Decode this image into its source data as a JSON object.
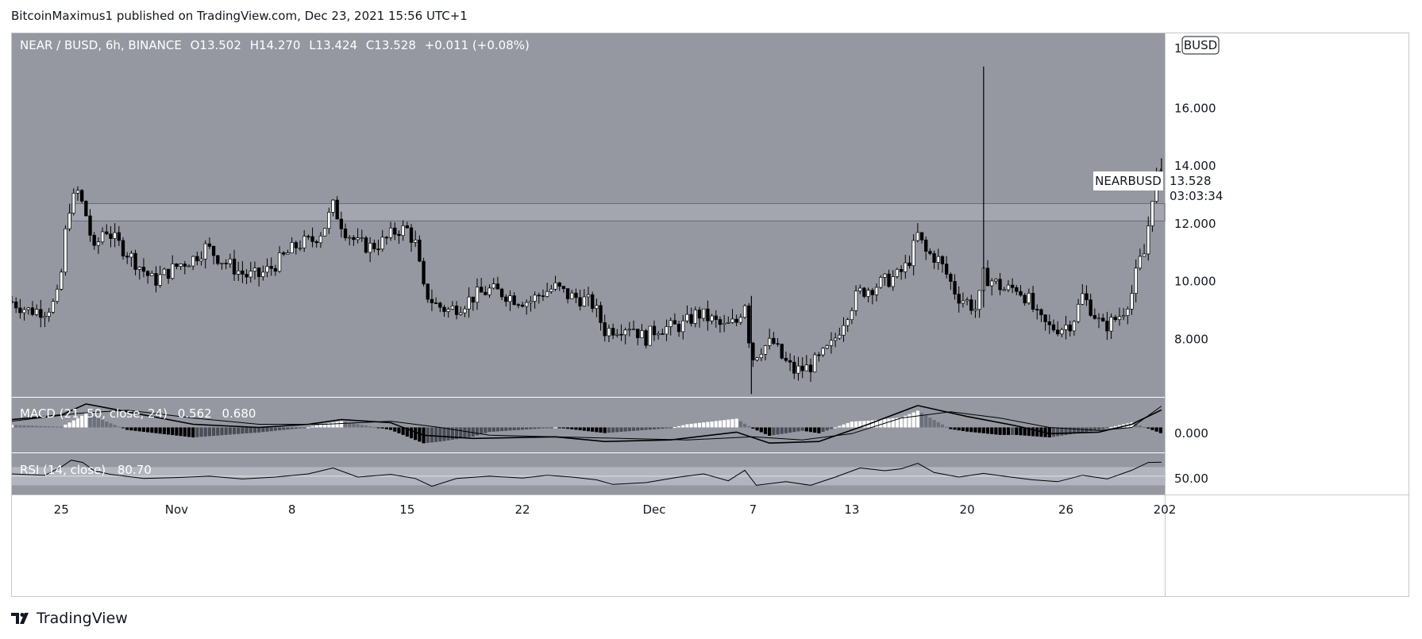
{
  "header": {
    "attribution": "BitcoinMaximus1 published on TradingView.com, Dec 23, 2021 15:56 UTC+1"
  },
  "footer": {
    "brand": "TradingView"
  },
  "colors": {
    "pane_bg": "#9598a1",
    "up": "#ffffff",
    "down": "#000000",
    "zone": "#a3a6ae",
    "rsi_band": "#b2b5be"
  },
  "legend": {
    "symbol": "NEAR / BUSD, 6h, BINANCE",
    "o_label": "O",
    "o_value": "13.502",
    "h_label": "H",
    "h_value": "14.270",
    "l_label": "L",
    "l_value": "13.424",
    "c_label": "C",
    "c_value": "13.528",
    "change": "+0.011 (+0.08%)"
  },
  "price_tag": {
    "symbol": "NEARBUSD",
    "price": "13.528",
    "countdown": "03:03:34"
  },
  "currency_badge": "BUSD",
  "macd_label": {
    "text": "MACD (21, 50, close, 24)",
    "v1": "0.562",
    "v2": "0.680"
  },
  "rsi_label": {
    "text": "RSI (14, close)",
    "value": "80.70"
  },
  "chart_data": {
    "type": "candlestick",
    "symbol": "NEAR / BUSD",
    "interval": "6h",
    "exchange": "BINANCE",
    "y_ticks": [
      "16.000",
      "14.000",
      "12.000",
      "10.000",
      "8.000"
    ],
    "y_tick_values": [
      16,
      14,
      12,
      10,
      8
    ],
    "ylim": [
      6.0,
      18.6
    ],
    "y_top_partial_label": "1",
    "resistance_zone": [
      12.1,
      12.7
    ],
    "x_ticks": [
      "25",
      "Nov",
      "8",
      "15",
      "22",
      "Dec",
      "7",
      "13",
      "20",
      "26",
      "202"
    ],
    "x_tick_days": [
      0,
      7,
      14,
      21,
      28,
      36,
      42,
      48,
      55,
      61,
      67
    ],
    "x_range_days": [
      -3,
      67
    ],
    "price_path": [
      [
        -3.0,
        9.3
      ],
      [
        -2.0,
        9.0
      ],
      [
        -1.0,
        9.0
      ],
      [
        -0.3,
        9.3
      ],
      [
        0.0,
        10.3
      ],
      [
        0.4,
        12.5
      ],
      [
        1.0,
        13.1
      ],
      [
        1.5,
        12.3
      ],
      [
        2.0,
        11.0
      ],
      [
        2.6,
        11.9
      ],
      [
        3.3,
        11.4
      ],
      [
        4.0,
        11.0
      ],
      [
        4.8,
        10.5
      ],
      [
        5.6,
        10.0
      ],
      [
        6.4,
        10.3
      ],
      [
        7.2,
        10.6
      ],
      [
        8.0,
        10.8
      ],
      [
        8.8,
        11.2
      ],
      [
        9.6,
        10.8
      ],
      [
        10.4,
        10.5
      ],
      [
        11.2,
        10.2
      ],
      [
        12.0,
        10.2
      ],
      [
        12.8,
        10.5
      ],
      [
        13.6,
        10.9
      ],
      [
        14.4,
        11.3
      ],
      [
        15.2,
        11.4
      ],
      [
        15.9,
        11.8
      ],
      [
        16.5,
        12.6
      ],
      [
        17.2,
        11.8
      ],
      [
        18.0,
        11.3
      ],
      [
        18.8,
        11.2
      ],
      [
        19.6,
        11.4
      ],
      [
        20.4,
        11.8
      ],
      [
        21.0,
        11.8
      ],
      [
        21.5,
        11.3
      ],
      [
        22.0,
        9.7
      ],
      [
        22.7,
        9.2
      ],
      [
        23.5,
        9.0
      ],
      [
        24.3,
        9.2
      ],
      [
        25.1,
        9.5
      ],
      [
        26.0,
        9.7
      ],
      [
        26.8,
        9.6
      ],
      [
        27.6,
        9.4
      ],
      [
        28.4,
        9.3
      ],
      [
        29.2,
        9.6
      ],
      [
        30.0,
        9.8
      ],
      [
        30.8,
        9.5
      ],
      [
        31.6,
        9.4
      ],
      [
        32.3,
        9.2
      ],
      [
        33.0,
        8.3
      ],
      [
        33.8,
        8.4
      ],
      [
        34.6,
        8.5
      ],
      [
        35.4,
        8.0
      ],
      [
        36.2,
        8.4
      ],
      [
        37.0,
        8.4
      ],
      [
        37.8,
        8.5
      ],
      [
        38.6,
        8.9
      ],
      [
        39.4,
        8.7
      ],
      [
        40.2,
        8.4
      ],
      [
        41.0,
        8.6
      ],
      [
        41.5,
        9.3
      ],
      [
        41.9,
        7.3
      ],
      [
        42.5,
        7.7
      ],
      [
        43.2,
        7.9
      ],
      [
        43.8,
        7.3
      ],
      [
        44.5,
        6.9
      ],
      [
        45.3,
        7.0
      ],
      [
        46.0,
        7.3
      ],
      [
        46.8,
        7.8
      ],
      [
        47.6,
        8.8
      ],
      [
        48.4,
        9.6
      ],
      [
        49.2,
        9.8
      ],
      [
        50.0,
        10.0
      ],
      [
        50.8,
        10.2
      ],
      [
        51.4,
        10.6
      ],
      [
        52.0,
        11.6
      ],
      [
        52.5,
        11.0
      ],
      [
        53.2,
        10.8
      ],
      [
        53.8,
        10.2
      ],
      [
        54.4,
        9.5
      ],
      [
        55.0,
        9.3
      ],
      [
        55.6,
        9.0
      ],
      [
        56.0,
        10.2
      ],
      [
        56.6,
        10.0
      ],
      [
        57.3,
        9.7
      ],
      [
        58.0,
        9.8
      ],
      [
        58.7,
        9.4
      ],
      [
        59.3,
        8.7
      ],
      [
        60.0,
        8.4
      ],
      [
        60.7,
        8.4
      ],
      [
        61.4,
        8.6
      ],
      [
        62.0,
        9.5
      ],
      [
        62.6,
        9.0
      ],
      [
        63.2,
        8.4
      ],
      [
        63.8,
        8.6
      ],
      [
        64.4,
        8.9
      ],
      [
        65.0,
        9.6
      ],
      [
        65.4,
        10.6
      ],
      [
        65.8,
        11.0
      ],
      [
        66.2,
        12.9
      ],
      [
        66.6,
        13.8
      ],
      [
        66.8,
        13.5
      ]
    ],
    "wicks": [
      {
        "day": 56.0,
        "high": 17.45,
        "low": 9.1
      },
      {
        "day": 41.9,
        "high": 9.5,
        "low": 6.1
      },
      {
        "day": 66.8,
        "high": 14.27,
        "low": 13.3
      }
    ],
    "macd": {
      "label": "MACD (21, 50, close, 24)",
      "macd_value": 0.562,
      "signal_value": 0.68,
      "zero_tick": "0.000",
      "macd_path": [
        [
          -3,
          0.25
        ],
        [
          0,
          0.4
        ],
        [
          1.5,
          0.75
        ],
        [
          4,
          0.5
        ],
        [
          8,
          0.1
        ],
        [
          12,
          0.0
        ],
        [
          15,
          0.1
        ],
        [
          17,
          0.25
        ],
        [
          20,
          0.15
        ],
        [
          22,
          -0.25
        ],
        [
          25,
          -0.35
        ],
        [
          30,
          -0.3
        ],
        [
          33,
          -0.45
        ],
        [
          37,
          -0.4
        ],
        [
          41,
          -0.15
        ],
        [
          43,
          -0.5
        ],
        [
          46,
          -0.45
        ],
        [
          49,
          0.1
        ],
        [
          52,
          0.7
        ],
        [
          55,
          0.35
        ],
        [
          58,
          0.05
        ],
        [
          60,
          -0.2
        ],
        [
          63,
          -0.15
        ],
        [
          65,
          0.1
        ],
        [
          66.8,
          0.56
        ]
      ],
      "signal_path": [
        [
          -3,
          0.2
        ],
        [
          1,
          0.45
        ],
        [
          4,
          0.55
        ],
        [
          8,
          0.3
        ],
        [
          12,
          0.1
        ],
        [
          16,
          0.1
        ],
        [
          20,
          0.2
        ],
        [
          23,
          0.0
        ],
        [
          26,
          -0.25
        ],
        [
          30,
          -0.3
        ],
        [
          34,
          -0.35
        ],
        [
          38,
          -0.4
        ],
        [
          42,
          -0.3
        ],
        [
          45,
          -0.4
        ],
        [
          48,
          -0.2
        ],
        [
          51,
          0.3
        ],
        [
          54,
          0.5
        ],
        [
          57,
          0.3
        ],
        [
          60,
          0.0
        ],
        [
          63,
          -0.1
        ],
        [
          65,
          0.0
        ],
        [
          66.8,
          0.68
        ]
      ],
      "ylim": [
        -0.8,
        0.95
      ]
    },
    "rsi": {
      "label": "RSI (14, close)",
      "value": 80.7,
      "tick": "50.00",
      "band": [
        30,
        70
      ],
      "mid": 50,
      "path": [
        [
          -3,
          55
        ],
        [
          -1,
          52
        ],
        [
          0,
          70
        ],
        [
          0.6,
          85
        ],
        [
          1.3,
          80
        ],
        [
          2,
          62
        ],
        [
          3,
          54
        ],
        [
          5,
          45
        ],
        [
          7,
          47
        ],
        [
          9,
          50
        ],
        [
          11,
          44
        ],
        [
          13,
          48
        ],
        [
          15,
          55
        ],
        [
          16.5,
          68
        ],
        [
          18,
          48
        ],
        [
          20,
          54
        ],
        [
          21.5,
          45
        ],
        [
          22.5,
          28
        ],
        [
          24,
          45
        ],
        [
          26,
          50
        ],
        [
          28,
          46
        ],
        [
          29.5,
          52
        ],
        [
          31,
          48
        ],
        [
          32.5,
          42
        ],
        [
          33.5,
          32
        ],
        [
          35.5,
          36
        ],
        [
          37.5,
          48
        ],
        [
          39,
          55
        ],
        [
          40.5,
          40
        ],
        [
          41.5,
          63
        ],
        [
          42.2,
          30
        ],
        [
          44,
          38
        ],
        [
          45.5,
          30
        ],
        [
          47,
          48
        ],
        [
          48.5,
          68
        ],
        [
          50,
          62
        ],
        [
          51,
          66
        ],
        [
          52,
          78
        ],
        [
          53,
          58
        ],
        [
          54.5,
          48
        ],
        [
          56,
          56
        ],
        [
          57,
          51
        ],
        [
          59,
          42
        ],
        [
          60.5,
          38
        ],
        [
          62,
          52
        ],
        [
          63.5,
          44
        ],
        [
          65,
          63
        ],
        [
          66,
          80
        ],
        [
          66.8,
          80.7
        ]
      ],
      "ylim": [
        10,
        100
      ]
    }
  }
}
